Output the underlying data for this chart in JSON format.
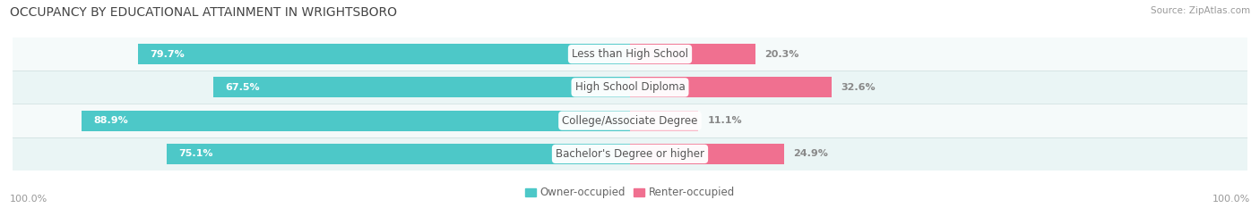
{
  "title": "OCCUPANCY BY EDUCATIONAL ATTAINMENT IN WRIGHTSBORO",
  "source": "Source: ZipAtlas.com",
  "categories": [
    "Less than High School",
    "High School Diploma",
    "College/Associate Degree",
    "Bachelor's Degree or higher"
  ],
  "owner_values": [
    79.7,
    67.5,
    88.9,
    75.1
  ],
  "renter_values": [
    20.3,
    32.6,
    11.1,
    24.9
  ],
  "owner_color": "#4DC8C8",
  "renter_color": "#F07090",
  "renter_color_light": "#F9B8C8",
  "row_bg_color_light": "#F5FAFA",
  "row_bg_color_dark": "#EAF5F5",
  "title_fontsize": 10,
  "label_fontsize": 8.5,
  "value_fontsize": 8,
  "legend_fontsize": 8.5,
  "axis_label_fontsize": 8,
  "background_color": "#FFFFFF",
  "left_axis_label": "100.0%",
  "right_axis_label": "100.0%"
}
